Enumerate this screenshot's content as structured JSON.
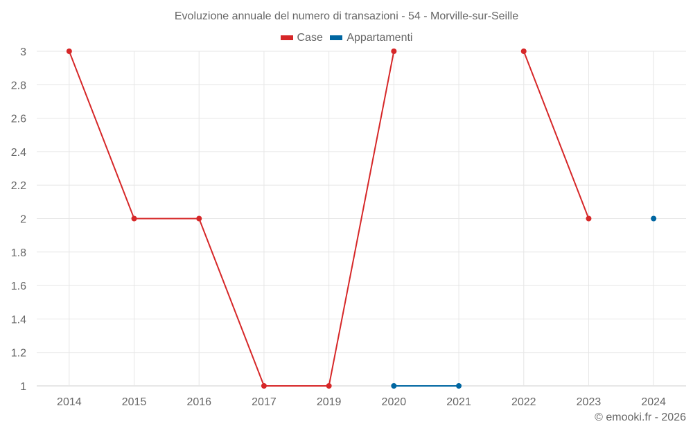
{
  "chart_data": {
    "type": "line",
    "title": "Evoluzione annuale del numero di transazioni - 54 - Morville-sur-Seille",
    "categories": [
      "2014",
      "2015",
      "2016",
      "2017",
      "2019",
      "2020",
      "2021",
      "2022",
      "2023",
      "2024"
    ],
    "series": [
      {
        "name": "Case",
        "color": "#d62728",
        "values": [
          3,
          2,
          2,
          1,
          1,
          3,
          null,
          3,
          2,
          null
        ]
      },
      {
        "name": "Appartamenti",
        "color": "#0066a1",
        "values": [
          null,
          null,
          null,
          null,
          null,
          1,
          1,
          null,
          null,
          2
        ]
      }
    ],
    "xlabel": "",
    "ylabel": "",
    "ylim": [
      1,
      3
    ],
    "yticks": [
      "3",
      "2.8",
      "2.6",
      "2.4",
      "2.2",
      "2",
      "1.8",
      "1.6",
      "1.4",
      "1.2",
      "1"
    ],
    "grid": true,
    "legend_position": "top"
  },
  "credit": "© emooki.fr - 2026"
}
